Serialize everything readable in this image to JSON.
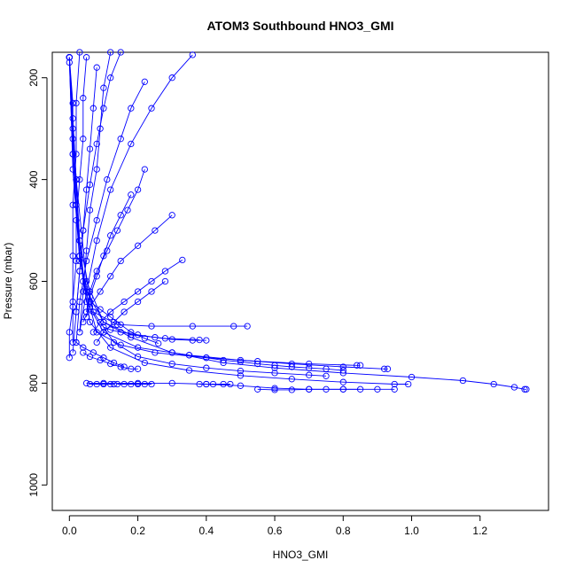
{
  "chart_data": {
    "type": "line",
    "title": "ATOM3 Southbound HNO3_GMI",
    "xlabel": "HNO3_GMI",
    "ylabel": "Pressure (mbar)",
    "xlim": [
      -0.05,
      1.4
    ],
    "ylim": [
      1050,
      150
    ],
    "y_reversed": true,
    "x_ticks": [
      0.0,
      0.2,
      0.4,
      0.6,
      0.8,
      1.0,
      1.2
    ],
    "x_tick_labels": [
      "0.0",
      "0.2",
      "0.4",
      "0.6",
      "0.8",
      "1.0",
      "1.2"
    ],
    "y_ticks": [
      200,
      400,
      600,
      800,
      1000
    ],
    "y_tick_labels": [
      "200",
      "400",
      "600",
      "800",
      "1000"
    ],
    "grid": false,
    "legend": "none",
    "line_color": "#0000ff",
    "marker": "open-circle",
    "series": [
      {
        "x": [
          0.0,
          0.01,
          0.01,
          0.02,
          0.03,
          0.05,
          0.1,
          0.18,
          0.3,
          0.45,
          0.6,
          0.8,
          1.0,
          1.15,
          1.24,
          1.3,
          1.33,
          1.335
        ],
        "y": [
          160,
          250,
          350,
          450,
          550,
          620,
          680,
          710,
          740,
          760,
          770,
          780,
          788,
          795,
          802,
          808,
          812,
          812
        ]
      },
      {
        "x": [
          0.0,
          0.01,
          0.02,
          0.03,
          0.05,
          0.1,
          0.2,
          0.35,
          0.5,
          0.65,
          0.8,
          0.92,
          0.93
        ],
        "y": [
          160,
          280,
          400,
          520,
          640,
          700,
          730,
          745,
          755,
          762,
          768,
          772,
          772
        ]
      },
      {
        "x": [
          0.0,
          0.01,
          0.02,
          0.04,
          0.08,
          0.15,
          0.25,
          0.4,
          0.55,
          0.7,
          0.84,
          0.85
        ],
        "y": [
          160,
          300,
          450,
          600,
          700,
          725,
          740,
          750,
          757,
          762,
          765,
          765
        ]
      },
      {
        "x": [
          0.0,
          0.01,
          0.03,
          0.06,
          0.12,
          0.22,
          0.35,
          0.5,
          0.65,
          0.8,
          0.95,
          0.99
        ],
        "y": [
          170,
          350,
          550,
          680,
          730,
          760,
          775,
          785,
          792,
          798,
          802,
          802
        ]
      },
      {
        "x": [
          0.0,
          0.01,
          0.03,
          0.07,
          0.14,
          0.24,
          0.36,
          0.48,
          0.52
        ],
        "y": [
          160,
          380,
          560,
          660,
          685,
          688,
          688,
          688,
          688
        ]
      },
      {
        "x": [
          0.0,
          0.02,
          0.05,
          0.1,
          0.18,
          0.28,
          0.38
        ],
        "y": [
          160,
          400,
          600,
          680,
          705,
          712,
          715
        ]
      },
      {
        "x": [
          0.05,
          0.1,
          0.2,
          0.3,
          0.4,
          0.5,
          0.6,
          0.7,
          0.8,
          0.9,
          0.95
        ],
        "y": [
          800,
          800,
          800,
          800,
          802,
          805,
          810,
          812,
          812,
          812,
          812
        ]
      },
      {
        "x": [
          0.0,
          0.01,
          0.03,
          0.07,
          0.13,
          0.2,
          0.3,
          0.4,
          0.5,
          0.6,
          0.7,
          0.75
        ],
        "y": [
          160,
          320,
          520,
          660,
          720,
          748,
          762,
          770,
          776,
          780,
          784,
          786
        ]
      },
      {
        "x": [
          0.36,
          0.3,
          0.24,
          0.18,
          0.12,
          0.08,
          0.05,
          0.03
        ],
        "y": [
          155,
          200,
          260,
          330,
          420,
          520,
          620,
          700
        ]
      },
      {
        "x": [
          0.22,
          0.18,
          0.15,
          0.11,
          0.08,
          0.05,
          0.03,
          0.02
        ],
        "y": [
          208,
          260,
          320,
          400,
          480,
          560,
          640,
          720
        ]
      },
      {
        "x": [
          0.15,
          0.12,
          0.1,
          0.08,
          0.06,
          0.04,
          0.03,
          0.02
        ],
        "y": [
          150,
          200,
          260,
          330,
          410,
          500,
          580,
          660
        ]
      },
      {
        "x": [
          0.3,
          0.25,
          0.2,
          0.15,
          0.12,
          0.09,
          0.06,
          0.04
        ],
        "y": [
          470,
          500,
          530,
          560,
          590,
          620,
          650,
          680
        ]
      },
      {
        "x": [
          0.33,
          0.28,
          0.24,
          0.2,
          0.16,
          0.12,
          0.09,
          0.07
        ],
        "y": [
          558,
          580,
          600,
          620,
          640,
          660,
          680,
          700
        ]
      },
      {
        "x": [
          0.22,
          0.2,
          0.17,
          0.14,
          0.11,
          0.08,
          0.06,
          0.05
        ],
        "y": [
          380,
          420,
          460,
          500,
          540,
          580,
          620,
          660
        ]
      },
      {
        "x": [
          0.18,
          0.15,
          0.12,
          0.1,
          0.08,
          0.06,
          0.05
        ],
        "y": [
          430,
          470,
          510,
          550,
          590,
          630,
          670
        ]
      },
      {
        "x": [
          0.12,
          0.1,
          0.09,
          0.08,
          0.06,
          0.05,
          0.04,
          0.03
        ],
        "y": [
          150,
          220,
          300,
          380,
          460,
          540,
          620,
          700
        ]
      },
      {
        "x": [
          0.28,
          0.24,
          0.2,
          0.16,
          0.13,
          0.1,
          0.08
        ],
        "y": [
          600,
          620,
          640,
          660,
          680,
          700,
          720
        ]
      },
      {
        "x": [
          0.08,
          0.07,
          0.06,
          0.05,
          0.04,
          0.03,
          0.02,
          0.01
        ],
        "y": [
          180,
          260,
          340,
          420,
          500,
          580,
          660,
          740
        ]
      },
      {
        "x": [
          0.05,
          0.04,
          0.04,
          0.03,
          0.02,
          0.02,
          0.01,
          0.01
        ],
        "y": [
          160,
          240,
          320,
          400,
          480,
          560,
          640,
          720
        ]
      },
      {
        "x": [
          0.03,
          0.02,
          0.02,
          0.01,
          0.01,
          0.01,
          0.0,
          0.0
        ],
        "y": [
          150,
          250,
          350,
          450,
          550,
          650,
          700,
          750
        ]
      },
      {
        "x": [
          0.1,
          0.12,
          0.15,
          0.2,
          0.25,
          0.3,
          0.36,
          0.4
        ],
        "y": [
          690,
          695,
          700,
          705,
          710,
          714,
          716,
          716
        ]
      },
      {
        "x": [
          0.04,
          0.06,
          0.09,
          0.12,
          0.15,
          0.18,
          0.2
        ],
        "y": [
          740,
          748,
          755,
          762,
          768,
          772,
          772
        ]
      },
      {
        "x": [
          0.02,
          0.04,
          0.07,
          0.1,
          0.13,
          0.16
        ],
        "y": [
          720,
          730,
          740,
          750,
          760,
          768
        ]
      },
      {
        "x": [
          0.06,
          0.09,
          0.12,
          0.15,
          0.18,
          0.22,
          0.26
        ],
        "y": [
          640,
          655,
          670,
          685,
          700,
          712,
          722
        ]
      },
      {
        "x": [
          0.38,
          0.4,
          0.42,
          0.45,
          0.47
        ],
        "y": [
          802,
          802,
          802,
          802,
          802
        ]
      },
      {
        "x": [
          0.14,
          0.16,
          0.18,
          0.2,
          0.22,
          0.24
        ],
        "y": [
          802,
          802,
          802,
          802,
          802,
          802
        ]
      },
      {
        "x": [
          0.06,
          0.08,
          0.1,
          0.12,
          0.13
        ],
        "y": [
          802,
          802,
          802,
          802,
          802
        ]
      },
      {
        "x": [
          0.55,
          0.6,
          0.65,
          0.7,
          0.75,
          0.8,
          0.85
        ],
        "y": [
          812,
          813,
          813,
          812,
          812,
          812,
          812
        ]
      },
      {
        "x": [
          0.3,
          0.35,
          0.4,
          0.45,
          0.5,
          0.55,
          0.6,
          0.65,
          0.7,
          0.75,
          0.8
        ],
        "y": [
          740,
          745,
          750,
          755,
          758,
          762,
          765,
          768,
          770,
          772,
          775
        ]
      }
    ]
  }
}
